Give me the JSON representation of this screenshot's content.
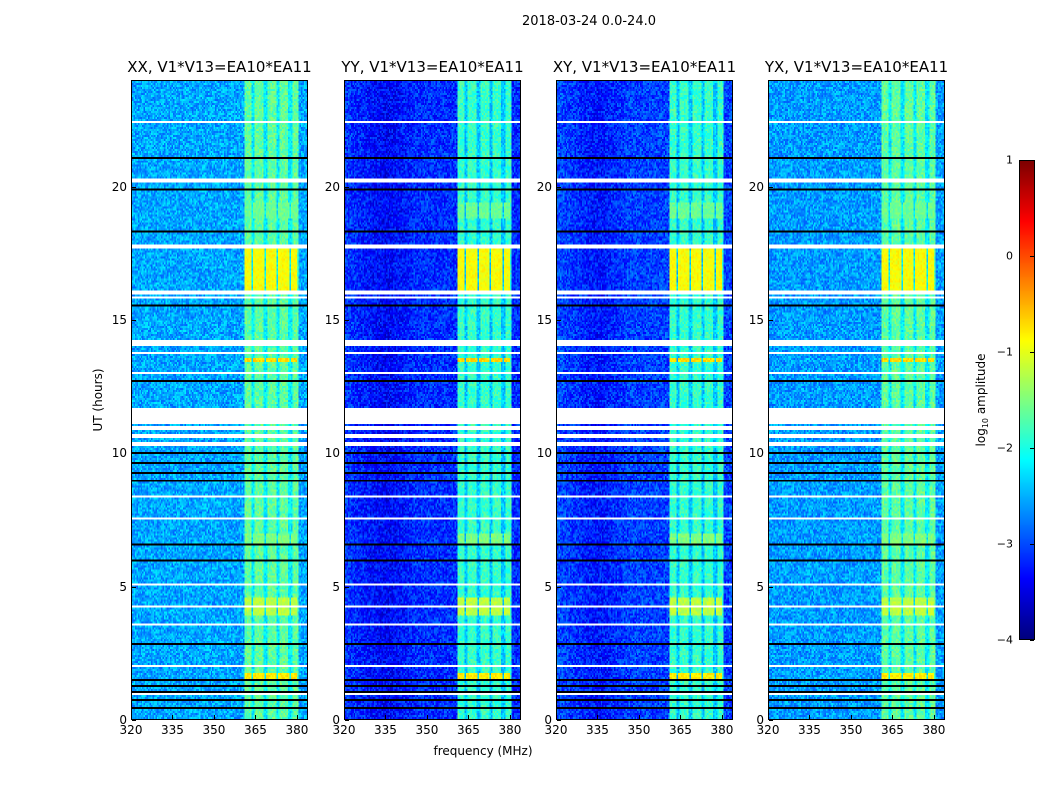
{
  "chart_data": {
    "type": "heatmap",
    "title": "2018-03-24 0.0-24.0",
    "xlabel": "frequency (MHz)",
    "ylabel": "UT (hours)",
    "xlim": [
      320,
      384
    ],
    "ylim": [
      0,
      24
    ],
    "xticks": [
      "320",
      "335",
      "350",
      "365",
      "380"
    ],
    "xtick_values": [
      320,
      335,
      350,
      365,
      380
    ],
    "yticks": [
      "0",
      "5",
      "10",
      "15",
      "20"
    ],
    "ytick_values": [
      0,
      5,
      10,
      15,
      20
    ],
    "colorbar": {
      "label_main": "log",
      "label_sub": "10",
      "label_rest": " amplitude",
      "range": [
        -4,
        1
      ],
      "ticks": [
        "1",
        "0",
        "−1",
        "−2",
        "−3",
        "−4"
      ],
      "tick_values": [
        1,
        0,
        -1,
        -2,
        -3,
        -4
      ],
      "colormap": "jet"
    },
    "panels": [
      {
        "title": "XX, V1*V13=EA10*EA11",
        "base_level": -2.55,
        "left_darker": false
      },
      {
        "title": "YY, V1*V13=EA10*EA11",
        "base_level": -3.15,
        "left_darker": true
      },
      {
        "title": "XY, V1*V13=EA10*EA11",
        "base_level": -3.05,
        "left_darker": true
      },
      {
        "title": "YX, V1*V13=EA10*EA11",
        "base_level": -2.6,
        "left_darker": false
      }
    ],
    "rfi_band_mhz": [
      361,
      381
    ],
    "rfi_channels_mhz": [
      362,
      366.5,
      371,
      375.5,
      380
    ],
    "rfi_level": -1.9,
    "bursts_hours": [
      [
        16.1,
        17.8,
        -0.9
      ],
      [
        3.9,
        4.6,
        -1.2
      ],
      [
        1.5,
        1.7,
        -0.8
      ],
      [
        13.4,
        13.6,
        -0.7
      ],
      [
        18.8,
        19.4,
        -1.6
      ],
      [
        6.6,
        7.0,
        -1.5
      ]
    ],
    "flagged_white_hours": [
      [
        10.3,
        10.4
      ],
      [
        10.6,
        10.7
      ],
      [
        10.9,
        11.0
      ],
      [
        11.1,
        11.7
      ],
      [
        14.0,
        14.2
      ],
      [
        22.4,
        22.5
      ],
      [
        20.2,
        20.3
      ],
      [
        17.7,
        17.8
      ],
      [
        16.0,
        16.1
      ],
      [
        15.8,
        15.85
      ],
      [
        12.95,
        13.0
      ],
      [
        13.75,
        13.8
      ],
      [
        8.3,
        8.35
      ],
      [
        7.5,
        7.55
      ],
      [
        4.2,
        4.25
      ],
      [
        3.5,
        3.55
      ],
      [
        1.95,
        2.0
      ],
      [
        0.9,
        0.95
      ],
      [
        5.0,
        5.05
      ]
    ],
    "flagged_black_hours": [
      [
        21.1,
        21.15
      ],
      [
        18.3,
        18.35
      ],
      [
        15.5,
        15.55
      ],
      [
        12.7,
        12.75
      ],
      [
        9.95,
        10.0
      ],
      [
        9.6,
        9.65
      ],
      [
        9.2,
        9.25
      ],
      [
        8.9,
        8.95
      ],
      [
        5.9,
        5.95
      ],
      [
        2.8,
        2.85
      ],
      [
        1.4,
        1.45
      ],
      [
        1.2,
        1.25
      ],
      [
        1.0,
        1.05
      ],
      [
        0.7,
        0.75
      ],
      [
        0.4,
        0.45
      ],
      [
        6.5,
        6.55
      ],
      [
        19.9,
        19.95
      ],
      [
        24.0,
        24.0
      ]
    ]
  }
}
